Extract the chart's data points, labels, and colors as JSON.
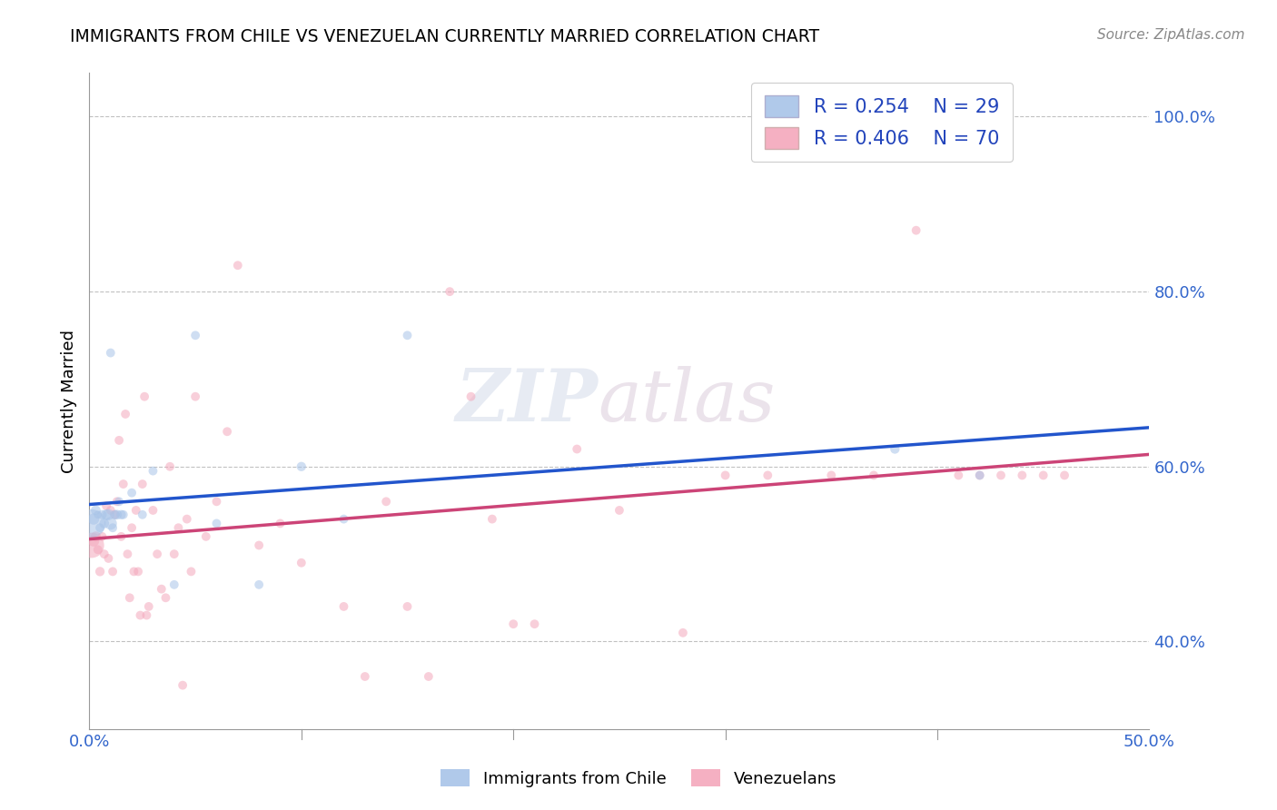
{
  "title": "IMMIGRANTS FROM CHILE VS VENEZUELAN CURRENTLY MARRIED CORRELATION CHART",
  "source": "Source: ZipAtlas.com",
  "ylabel": "Currently Married",
  "xlim": [
    0.0,
    0.5
  ],
  "ylim": [
    0.3,
    1.05
  ],
  "blue_R": "0.254",
  "blue_N": "29",
  "pink_R": "0.406",
  "pink_N": "70",
  "blue_color": "#a8c4e8",
  "pink_color": "#f4a8bc",
  "blue_line_color": "#2255cc",
  "pink_line_color": "#cc4477",
  "watermark_zip": "ZIP",
  "watermark_atlas": "atlas",
  "blue_points_x": [
    0.001,
    0.002,
    0.003,
    0.004,
    0.005,
    0.006,
    0.007,
    0.008,
    0.009,
    0.01,
    0.011,
    0.012,
    0.013,
    0.014,
    0.015,
    0.016,
    0.02,
    0.025,
    0.03,
    0.04,
    0.05,
    0.06,
    0.08,
    0.1,
    0.12,
    0.15,
    0.38,
    0.42,
    0.01
  ],
  "blue_points_y": [
    0.535,
    0.54,
    0.55,
    0.545,
    0.53,
    0.545,
    0.535,
    0.545,
    0.545,
    0.535,
    0.53,
    0.545,
    0.545,
    0.56,
    0.545,
    0.545,
    0.57,
    0.545,
    0.595,
    0.465,
    0.75,
    0.535,
    0.465,
    0.6,
    0.54,
    0.75,
    0.62,
    0.59,
    0.73
  ],
  "blue_points_size": [
    500,
    80,
    60,
    40,
    50,
    55,
    60,
    70,
    80,
    100,
    50,
    55,
    60,
    50,
    55,
    50,
    50,
    50,
    50,
    50,
    50,
    50,
    50,
    55,
    50,
    50,
    55,
    50,
    50
  ],
  "pink_points_x": [
    0.001,
    0.002,
    0.003,
    0.004,
    0.005,
    0.006,
    0.007,
    0.008,
    0.009,
    0.01,
    0.011,
    0.012,
    0.013,
    0.014,
    0.015,
    0.016,
    0.017,
    0.018,
    0.019,
    0.02,
    0.021,
    0.022,
    0.023,
    0.024,
    0.025,
    0.026,
    0.027,
    0.028,
    0.03,
    0.032,
    0.034,
    0.036,
    0.038,
    0.04,
    0.042,
    0.044,
    0.046,
    0.048,
    0.05,
    0.055,
    0.06,
    0.065,
    0.07,
    0.08,
    0.09,
    0.1,
    0.12,
    0.13,
    0.14,
    0.15,
    0.16,
    0.17,
    0.18,
    0.19,
    0.2,
    0.21,
    0.23,
    0.25,
    0.28,
    0.3,
    0.32,
    0.35,
    0.37,
    0.39,
    0.41,
    0.42,
    0.43,
    0.44,
    0.45,
    0.46
  ],
  "pink_points_y": [
    0.51,
    0.515,
    0.52,
    0.505,
    0.48,
    0.52,
    0.5,
    0.555,
    0.495,
    0.55,
    0.48,
    0.545,
    0.56,
    0.63,
    0.52,
    0.58,
    0.66,
    0.5,
    0.45,
    0.53,
    0.48,
    0.55,
    0.48,
    0.43,
    0.58,
    0.68,
    0.43,
    0.44,
    0.55,
    0.5,
    0.46,
    0.45,
    0.6,
    0.5,
    0.53,
    0.35,
    0.54,
    0.48,
    0.68,
    0.52,
    0.56,
    0.64,
    0.83,
    0.51,
    0.535,
    0.49,
    0.44,
    0.36,
    0.56,
    0.44,
    0.36,
    0.8,
    0.68,
    0.54,
    0.42,
    0.42,
    0.62,
    0.55,
    0.41,
    0.59,
    0.59,
    0.59,
    0.59,
    0.87,
    0.59,
    0.59,
    0.59,
    0.59,
    0.59,
    0.59
  ],
  "pink_points_size": [
    400,
    80,
    65,
    50,
    55,
    50,
    50,
    50,
    50,
    50,
    50,
    50,
    50,
    50,
    50,
    50,
    50,
    50,
    50,
    50,
    50,
    50,
    50,
    50,
    50,
    50,
    50,
    50,
    50,
    50,
    50,
    50,
    50,
    50,
    50,
    50,
    50,
    50,
    50,
    50,
    50,
    50,
    50,
    50,
    50,
    50,
    50,
    50,
    50,
    50,
    50,
    50,
    50,
    50,
    50,
    50,
    50,
    50,
    50,
    50,
    50,
    50,
    50,
    50,
    50,
    50,
    50,
    50,
    50,
    50
  ]
}
